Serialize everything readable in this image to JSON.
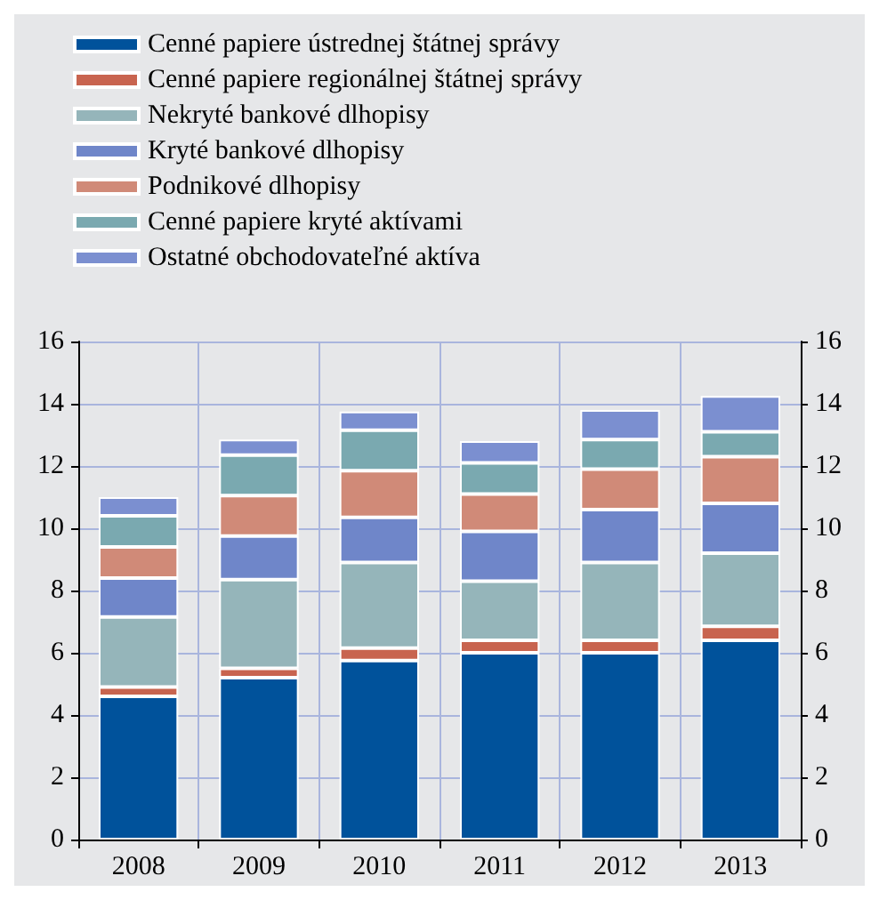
{
  "chart_data": {
    "type": "bar",
    "stacked": true,
    "categories": [
      "2008",
      "2009",
      "2010",
      "2011",
      "2012",
      "2013"
    ],
    "series": [
      {
        "name": "Cenné papiere ústrednej štátnej správy",
        "color": "#00529b",
        "values": [
          4.6,
          5.2,
          5.75,
          6.0,
          6.0,
          6.4
        ]
      },
      {
        "name": "Cenné papiere regionálnej štátnej správy",
        "color": "#c8644f",
        "values": [
          0.3,
          0.3,
          0.4,
          0.4,
          0.4,
          0.45
        ]
      },
      {
        "name": "Nekryté bankové dlhopisy",
        "color": "#95b5ba",
        "values": [
          2.25,
          2.85,
          2.75,
          1.9,
          2.5,
          2.35
        ]
      },
      {
        "name": "Kryté bankové dlhopisy",
        "color": "#6f86c9",
        "values": [
          1.25,
          1.4,
          1.45,
          1.6,
          1.7,
          1.6
        ]
      },
      {
        "name": "Podnikové dlhopisy",
        "color": "#d08a78",
        "values": [
          1.0,
          1.3,
          1.5,
          1.2,
          1.3,
          1.5
        ]
      },
      {
        "name": "Cenné papiere kryté aktívami",
        "color": "#7aa9b0",
        "values": [
          1.0,
          1.3,
          1.3,
          1.0,
          0.95,
          0.8
        ]
      },
      {
        "name": "Ostatné obchodovateľné aktíva",
        "color": "#7b8fd0",
        "values": [
          0.6,
          0.5,
          0.6,
          0.7,
          0.95,
          1.15
        ]
      }
    ],
    "ylim": [
      0,
      16
    ],
    "yticks": [
      0,
      2,
      4,
      6,
      8,
      10,
      12,
      14,
      16
    ],
    "y2lim": [
      0,
      16
    ],
    "y2ticks": [
      0,
      2,
      4,
      6,
      8,
      10,
      12,
      14,
      16
    ],
    "grid": true,
    "legend": "top"
  }
}
